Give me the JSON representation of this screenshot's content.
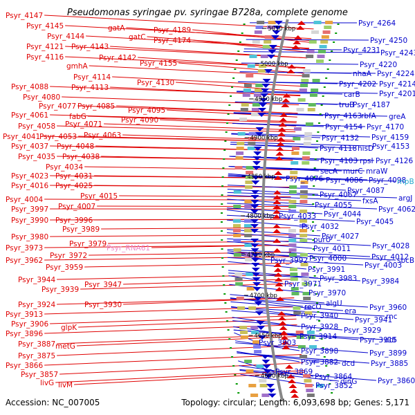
{
  "title": "Pseudomonas syringae pv. syringae B728a, complete genome",
  "accession": "Accession: NC_007005",
  "summary": "Topology: circular; Length: 6,093,698 bp; Genes: 5,171",
  "colors": {
    "left_strand": "#e00000",
    "right_strand": "#0000cc",
    "rna_label": "#ee88cc",
    "special_label": "#22aacc",
    "backbone": "#888888",
    "tick_mark": "#009900"
  },
  "ticks": [
    {
      "label": "5050 kbp"
    },
    {
      "label": "5000 kbp"
    },
    {
      "label": "4950 kbp"
    },
    {
      "label": "4900 kbp"
    },
    {
      "label": "4850 kbp"
    },
    {
      "label": "4800 kbp"
    },
    {
      "label": "4750 kbp"
    },
    {
      "label": "4700 kbp"
    },
    {
      "label": "4650 kbp"
    },
    {
      "label": "4600 kbp"
    }
  ],
  "left_labels": [
    {
      "text": "Psyr_4147"
    },
    {
      "text": "Psyr_4145"
    },
    {
      "text": "Psyr_4144"
    },
    {
      "text": "gatA"
    },
    {
      "text": "gatC"
    },
    {
      "text": "Psyr_4189"
    },
    {
      "text": "Psyr_4174"
    },
    {
      "text": "Psyr_4121"
    },
    {
      "text": "Psyr_4143"
    },
    {
      "text": "Psyr_4116"
    },
    {
      "text": "Psyr_4142"
    },
    {
      "text": "gmhA"
    },
    {
      "text": "Psyr_4155"
    },
    {
      "text": "Psyr_4114"
    },
    {
      "text": "Psyr_4130"
    },
    {
      "text": "Psyr_4113"
    },
    {
      "text": "Psyr_4088"
    },
    {
      "text": "Psyr_4080"
    },
    {
      "text": "Psyr_4077"
    },
    {
      "text": "Psyr_4085"
    },
    {
      "text": "Psyr_4095"
    },
    {
      "text": "Psyr_4061"
    },
    {
      "text": "fabG"
    },
    {
      "text": "Psyr_4090"
    },
    {
      "text": "Psyr_4058"
    },
    {
      "text": "Psyr_4071"
    },
    {
      "text": "Psyr_4041"
    },
    {
      "text": "Psyr_4053"
    },
    {
      "text": "Psyr_4063"
    },
    {
      "text": "Psyr_4037"
    },
    {
      "text": "Psyr_4048"
    },
    {
      "text": "Psyr_4035"
    },
    {
      "text": "Psyr_4038"
    },
    {
      "text": "Psyr_4034"
    },
    {
      "text": "Psyr_4023"
    },
    {
      "text": "Psyr_4031"
    },
    {
      "text": "Psyr_4016"
    },
    {
      "text": "Psyr_4025"
    },
    {
      "text": "Psyr_4015"
    },
    {
      "text": "Psyr_4004"
    },
    {
      "text": "Psyr_4007"
    },
    {
      "text": "Psyr_3997"
    },
    {
      "text": "Psyr_3990"
    },
    {
      "text": "Psyr_3996"
    },
    {
      "text": "Psyr_3989"
    },
    {
      "text": "Psyr_3980"
    },
    {
      "text": "Psyr_3979"
    },
    {
      "text": "Psyr_RNA61"
    },
    {
      "text": "Psyr_3973"
    },
    {
      "text": "Psyr_3972"
    },
    {
      "text": "Psyr_3962"
    },
    {
      "text": "Psyr_3959"
    },
    {
      "text": "Psyr_3944"
    },
    {
      "text": "Psyr_3947"
    },
    {
      "text": "Psyr_3939"
    },
    {
      "text": "Psyr_3924"
    },
    {
      "text": "Psyr_3930"
    },
    {
      "text": "Psyr_3913"
    },
    {
      "text": "Psyr_3906"
    },
    {
      "text": "glpK"
    },
    {
      "text": "Psyr_3896"
    },
    {
      "text": "Psyr_3887"
    },
    {
      "text": "metG"
    },
    {
      "text": "Psyr_3875"
    },
    {
      "text": "Psyr_3866"
    },
    {
      "text": "Psyr_3857"
    },
    {
      "text": "livG"
    },
    {
      "text": "livM"
    }
  ],
  "right_labels": [
    {
      "text": "Psyr_4264"
    },
    {
      "text": "Psyr_4250"
    },
    {
      "text": "Psyr_4231"
    },
    {
      "text": "Psyr_4243"
    },
    {
      "text": "Psyr_4220"
    },
    {
      "text": "nhaA"
    },
    {
      "text": "Psyr_4224"
    },
    {
      "text": "Psyr_4202"
    },
    {
      "text": "Psyr_4214"
    },
    {
      "text": "carB"
    },
    {
      "text": "Psyr_4201"
    },
    {
      "text": "truB"
    },
    {
      "text": "Psyr_4187"
    },
    {
      "text": "Psyr_4163"
    },
    {
      "text": "rbfA"
    },
    {
      "text": "greA"
    },
    {
      "text": "Psyr_4154"
    },
    {
      "text": "Psyr_4170"
    },
    {
      "text": "Psyr_4132"
    },
    {
      "text": "Psyr_4159"
    },
    {
      "text": "Psyr_4118"
    },
    {
      "text": "hisD"
    },
    {
      "text": "Psyr_4153"
    },
    {
      "text": "Psyr_4103"
    },
    {
      "text": "rpsI"
    },
    {
      "text": "Psyr_4126"
    },
    {
      "text": "secA"
    },
    {
      "text": "murC"
    },
    {
      "text": "mraW"
    },
    {
      "text": "Psyr_4076"
    },
    {
      "text": "Psyr_4086"
    },
    {
      "text": "Psyr_4098"
    },
    {
      "text": "rnpB"
    },
    {
      "text": "Psyr_4087"
    },
    {
      "text": "argJ"
    },
    {
      "text": "Psyr_4067"
    },
    {
      "text": "fxsA"
    },
    {
      "text": "Psyr_4055"
    },
    {
      "text": "Psyr_4062"
    },
    {
      "text": "Psyr_4033"
    },
    {
      "text": "Psyr_4044"
    },
    {
      "text": "Psyr_4045"
    },
    {
      "text": "Psyr_4032"
    },
    {
      "text": "Psyr_4027"
    },
    {
      "text": "purU"
    },
    {
      "text": "Psyr_4028"
    },
    {
      "text": "Psyr_4011"
    },
    {
      "text": "Psyr_4012"
    },
    {
      "text": "sbcB"
    },
    {
      "text": "Psyr_3992"
    },
    {
      "text": "Psyr_4000"
    },
    {
      "text": "Psyr_4003"
    },
    {
      "text": "Psyr_3991"
    },
    {
      "text": "Psyr_3983"
    },
    {
      "text": "Psyr_3984"
    },
    {
      "text": "Psyr_3971"
    },
    {
      "text": "Psyr_3970"
    },
    {
      "text": "algU"
    },
    {
      "text": "recO"
    },
    {
      "text": "Psyr_3960"
    },
    {
      "text": "era"
    },
    {
      "text": "rnc"
    },
    {
      "text": "Psyr_3940"
    },
    {
      "text": "Psyr_3941"
    },
    {
      "text": "Psyr_3928"
    },
    {
      "text": "Psyr_3929"
    },
    {
      "text": "Psyr_3914"
    },
    {
      "text": "Psyr_3915"
    },
    {
      "text": "ddl"
    },
    {
      "text": "Psyr_3903"
    },
    {
      "text": "Psyr_3898"
    },
    {
      "text": "Psyr_3899"
    },
    {
      "text": "Psyr_3882"
    },
    {
      "text": "dcd"
    },
    {
      "text": "Psyr_3885"
    },
    {
      "text": "Psyr_3869"
    },
    {
      "text": "Psyr_3864"
    },
    {
      "text": "Psyr_3860"
    },
    {
      "text": "Psyr_3852"
    },
    {
      "text": "dinG"
    }
  ]
}
